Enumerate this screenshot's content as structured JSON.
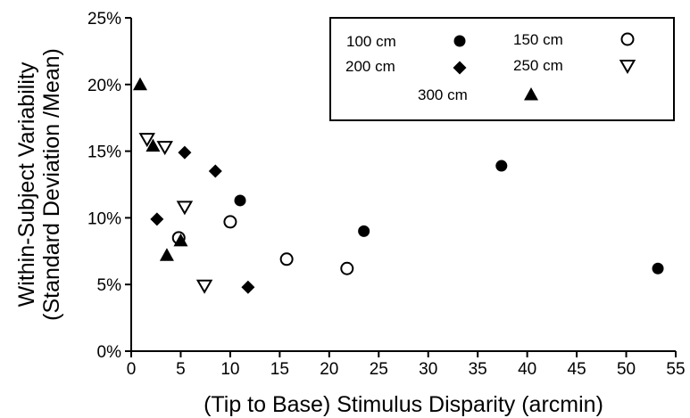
{
  "chart_data": {
    "type": "scatter",
    "xlabel": "(Tip to Base) Stimulus Disparity (arcmin)",
    "ylabel_lines": [
      "Within-Subject Variability",
      "(Standard Deviation /Mean)"
    ],
    "xlim": [
      0,
      55
    ],
    "ylim": [
      0,
      25
    ],
    "x_ticks": [
      0,
      5,
      10,
      15,
      20,
      25,
      30,
      35,
      40,
      45,
      50,
      55
    ],
    "y_ticks": [
      0,
      5,
      10,
      15,
      20,
      25
    ],
    "y_tick_labels": [
      "0%",
      "5%",
      "10%",
      "15%",
      "20%",
      "25%"
    ],
    "grid": false,
    "legend_position": "top-right",
    "series": [
      {
        "name": "100 cm",
        "marker": "filled-circle",
        "points": [
          [
            11.0,
            11.3
          ],
          [
            23.5,
            9.0
          ],
          [
            37.4,
            13.9
          ],
          [
            53.2,
            6.2
          ]
        ]
      },
      {
        "name": "150 cm",
        "marker": "open-circle",
        "points": [
          [
            4.8,
            8.5
          ],
          [
            10.0,
            9.7
          ],
          [
            15.7,
            6.9
          ],
          [
            21.8,
            6.2
          ]
        ]
      },
      {
        "name": "200 cm",
        "marker": "filled-diamond",
        "points": [
          [
            2.6,
            9.9
          ],
          [
            5.4,
            14.9
          ],
          [
            8.5,
            13.5
          ],
          [
            11.8,
            4.8
          ]
        ]
      },
      {
        "name": "250 cm",
        "marker": "open-triangle-down",
        "points": [
          [
            1.6,
            15.9
          ],
          [
            3.4,
            15.3
          ],
          [
            5.4,
            10.8
          ],
          [
            7.4,
            4.9
          ]
        ]
      },
      {
        "name": "300 cm",
        "marker": "filled-triangle-up",
        "points": [
          [
            0.9,
            20.0
          ],
          [
            2.2,
            15.4
          ],
          [
            3.6,
            7.2
          ],
          [
            5.0,
            8.3
          ]
        ]
      }
    ]
  }
}
